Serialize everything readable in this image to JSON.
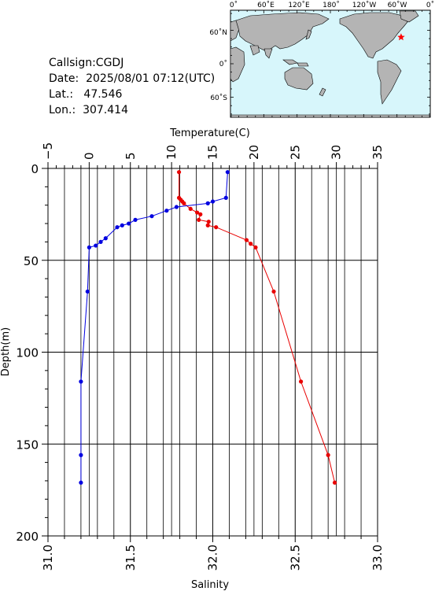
{
  "station": {
    "callsign_label": "Callsign:",
    "callsign": "CGDJ",
    "date_label": "Date:",
    "date": "2025/08/01 07:12(UTC)",
    "lat_label": "Lat.:",
    "lat": "47.546",
    "lon_label": "Lon.:",
    "lon": "307.414"
  },
  "map": {
    "lon_ticks": [
      "0˚",
      "60˚E",
      "120˚E",
      "180˚",
      "120˚W",
      "60˚W",
      "0˚"
    ],
    "lat_ticks": [
      "60˚N",
      "0˚",
      "60˚S"
    ],
    "ocean_color": "#d7f6fb",
    "land_color": "#b4b4b4",
    "marker": {
      "lat": 47.546,
      "lon": 307.414,
      "symbol": "star",
      "color": "#ff0000"
    }
  },
  "chart_data": {
    "type": "line",
    "top_axis": {
      "label": "Temperature(C)",
      "range": [
        -5,
        35
      ],
      "ticks": [
        "−5",
        "0",
        "5",
        "10",
        "15",
        "20",
        "25",
        "30",
        "35"
      ]
    },
    "bottom_axis": {
      "label": "Salinity",
      "range": [
        31.0,
        33.0
      ],
      "ticks": [
        "31.0",
        "31.5",
        "32.0",
        "32.5",
        "33.0"
      ]
    },
    "y_axis": {
      "label": "Depth(m)",
      "range": [
        0,
        200
      ],
      "inverted": true,
      "ticks": [
        "0",
        "50",
        "100",
        "150",
        "200"
      ]
    },
    "grid": true,
    "series": [
      {
        "axis": "temperature",
        "color": "#e80000",
        "points": [
          [
            10.9,
            2
          ],
          [
            10.9,
            16
          ],
          [
            11.1,
            17
          ],
          [
            11.3,
            18
          ],
          [
            11.5,
            19
          ],
          [
            12.3,
            22
          ],
          [
            13.1,
            24
          ],
          [
            13.5,
            25
          ],
          [
            13.3,
            28
          ],
          [
            14.5,
            29
          ],
          [
            14.4,
            31
          ],
          [
            15.4,
            32
          ],
          [
            19.1,
            39
          ],
          [
            19.6,
            41
          ],
          [
            20.2,
            43
          ],
          [
            22.4,
            67
          ],
          [
            25.7,
            116
          ],
          [
            29.0,
            156
          ],
          [
            29.8,
            171
          ]
        ]
      },
      {
        "axis": "salinity",
        "color": "#0000e0",
        "points": [
          [
            32.09,
            2
          ],
          [
            32.08,
            16
          ],
          [
            32.0,
            18
          ],
          [
            31.97,
            19
          ],
          [
            31.78,
            21
          ],
          [
            31.72,
            23
          ],
          [
            31.63,
            26
          ],
          [
            31.53,
            28
          ],
          [
            31.49,
            30
          ],
          [
            31.45,
            31
          ],
          [
            31.42,
            32
          ],
          [
            31.35,
            38
          ],
          [
            31.32,
            40
          ],
          [
            31.29,
            42
          ],
          [
            31.25,
            43
          ],
          [
            31.24,
            67
          ],
          [
            31.2,
            116
          ],
          [
            31.2,
            156
          ],
          [
            31.2,
            171
          ]
        ]
      }
    ]
  }
}
